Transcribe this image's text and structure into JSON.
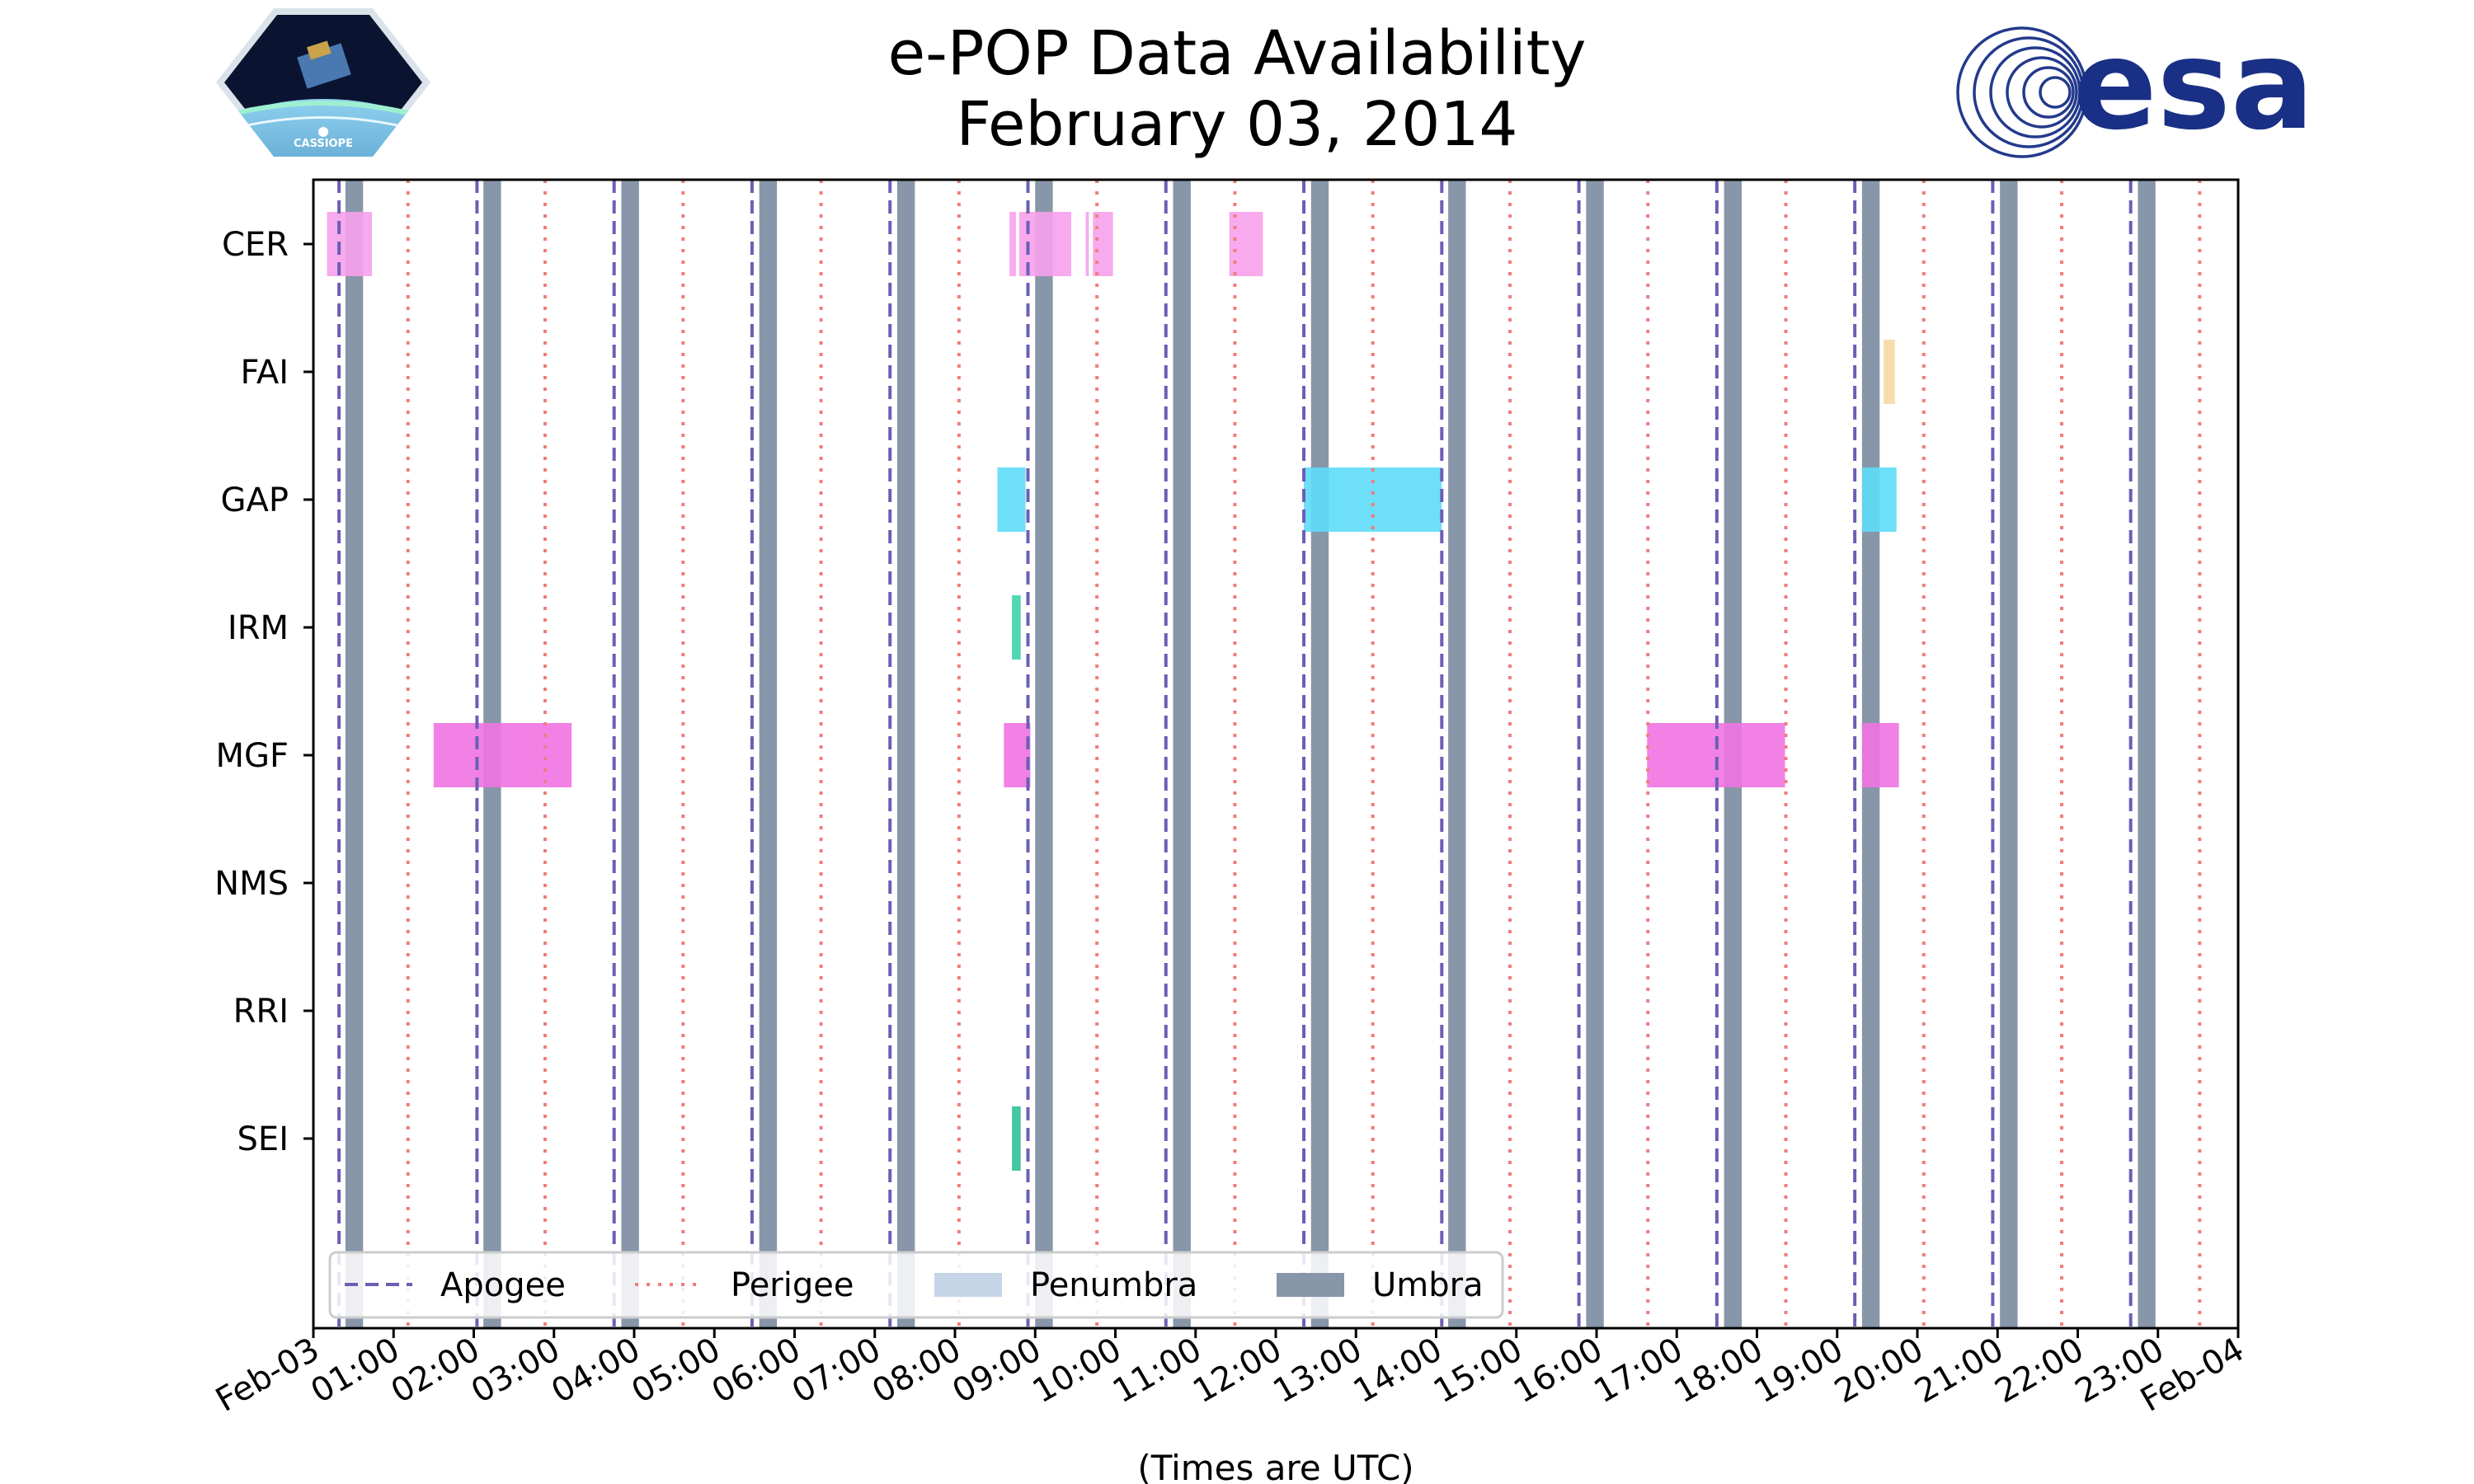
{
  "chart_data": {
    "type": "timeline",
    "title": "e-POP Data Availability",
    "subtitle": "February 03, 2014",
    "xlabel": "(Times are UTC)",
    "x_range_hours": [
      0,
      24
    ],
    "x_ticks": [
      "Feb-03",
      "01:00",
      "02:00",
      "03:00",
      "04:00",
      "05:00",
      "06:00",
      "07:00",
      "08:00",
      "09:00",
      "10:00",
      "11:00",
      "12:00",
      "13:00",
      "14:00",
      "15:00",
      "16:00",
      "17:00",
      "18:00",
      "19:00",
      "20:00",
      "21:00",
      "22:00",
      "23:00",
      "Feb-04"
    ],
    "instruments": [
      "CER",
      "FAI",
      "GAP",
      "IRM",
      "MGF",
      "NMS",
      "RRI",
      "SEI"
    ],
    "colors": {
      "apogee": "#6b5fb5",
      "perigee": "#f07c7c",
      "penumbra": "#c7d5e8",
      "umbra": "#8896aa",
      "CER": "#f7a1ec",
      "FAI": "#f7d9a3",
      "GAP": "#5edcf7",
      "IRM": "#3fd3ab",
      "MGF": "#ef73e2",
      "SEI": "#32c199"
    },
    "apogee_hours": [
      0.32,
      2.04,
      3.75,
      5.47,
      7.19,
      8.91,
      10.63,
      12.35,
      14.07,
      15.78,
      17.5,
      19.22,
      20.94,
      22.66
    ],
    "perigee_hours": [
      1.18,
      2.89,
      4.61,
      6.33,
      8.05,
      9.77,
      11.49,
      13.21,
      14.92,
      16.64,
      18.36,
      20.08,
      21.8,
      23.52
    ],
    "umbra_hours": [
      [
        0.4,
        0.62
      ],
      [
        2.12,
        2.34
      ],
      [
        3.84,
        4.06
      ],
      [
        5.56,
        5.78
      ],
      [
        7.28,
        7.5
      ],
      [
        9.0,
        9.22
      ],
      [
        10.72,
        10.94
      ],
      [
        12.44,
        12.66
      ],
      [
        14.15,
        14.37
      ],
      [
        15.87,
        16.09
      ],
      [
        17.59,
        17.81
      ],
      [
        19.31,
        19.53
      ],
      [
        21.03,
        21.25
      ],
      [
        22.75,
        22.97
      ]
    ],
    "availability": [
      {
        "instrument": "CER",
        "start": 0.17,
        "end": 0.73
      },
      {
        "instrument": "CER",
        "start": 8.68,
        "end": 8.76
      },
      {
        "instrument": "CER",
        "start": 8.8,
        "end": 9.45
      },
      {
        "instrument": "CER",
        "start": 9.63,
        "end": 9.67
      },
      {
        "instrument": "CER",
        "start": 9.72,
        "end": 9.97
      },
      {
        "instrument": "CER",
        "start": 11.42,
        "end": 11.84
      },
      {
        "instrument": "FAI",
        "start": 19.58,
        "end": 19.72
      },
      {
        "instrument": "GAP",
        "start": 8.53,
        "end": 8.88
      },
      {
        "instrument": "GAP",
        "start": 12.35,
        "end": 14.07
      },
      {
        "instrument": "GAP",
        "start": 19.31,
        "end": 19.74
      },
      {
        "instrument": "IRM",
        "start": 8.71,
        "end": 8.82
      },
      {
        "instrument": "MGF",
        "start": 1.5,
        "end": 3.22
      },
      {
        "instrument": "MGF",
        "start": 8.61,
        "end": 8.94
      },
      {
        "instrument": "MGF",
        "start": 16.63,
        "end": 18.35
      },
      {
        "instrument": "MGF",
        "start": 19.31,
        "end": 19.77
      },
      {
        "instrument": "SEI",
        "start": 8.71,
        "end": 8.82
      }
    ],
    "legend": [
      {
        "key": "apogee",
        "label": "Apogee"
      },
      {
        "key": "perigee",
        "label": "Perigee"
      },
      {
        "key": "penumbra",
        "label": "Penumbra"
      },
      {
        "key": "umbra",
        "label": "Umbra"
      }
    ],
    "legend_position": "lower-left"
  },
  "logos": {
    "left_mission": "CASSIOPE",
    "right_agency": "esa"
  }
}
